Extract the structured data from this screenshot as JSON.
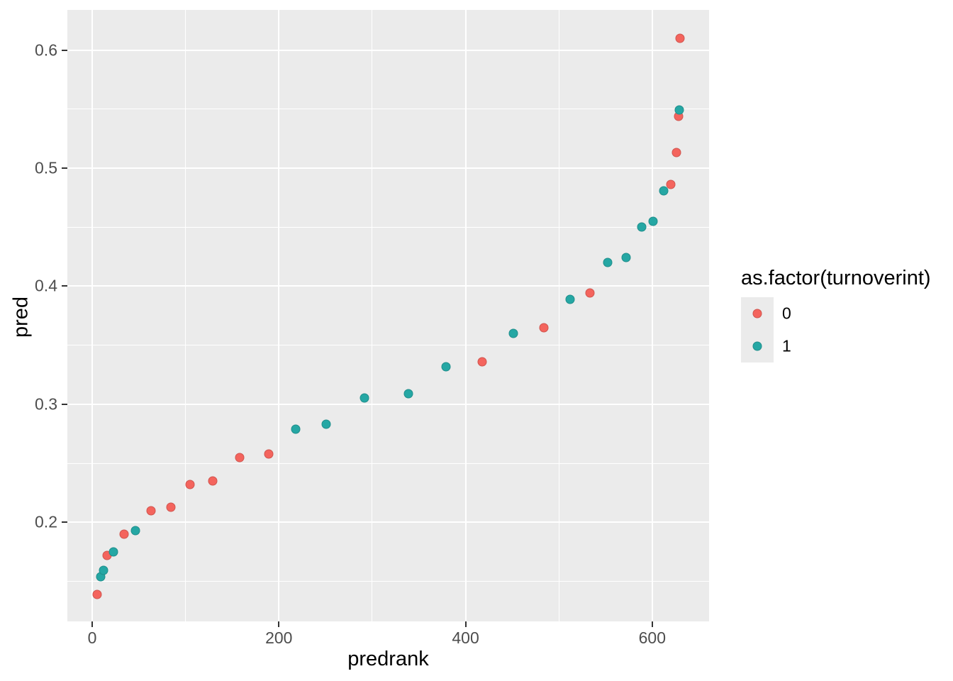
{
  "chart_data": {
    "type": "scatter",
    "title": "",
    "xlabel": "predrank",
    "ylabel": "pred",
    "xlim": [
      -26.6,
      660.9
    ],
    "ylim": [
      0.116,
      0.634
    ],
    "grid": "major and minor white gridlines on grey panel",
    "x_ticks": {
      "major": [
        0,
        200,
        400,
        600
      ],
      "minor": [
        100,
        300,
        500
      ],
      "labels": [
        "0",
        "200",
        "400",
        "600"
      ]
    },
    "y_ticks": {
      "major": [
        0.2,
        0.3,
        0.4,
        0.5,
        0.6
      ],
      "minor": [
        0.15,
        0.25,
        0.35,
        0.45,
        0.55
      ],
      "labels": [
        "0.2",
        "0.3",
        "0.4",
        "0.5",
        "0.6"
      ]
    },
    "legend": {
      "title": "as.factor(turnoverint)",
      "position": "right"
    },
    "series": [
      {
        "name": "0",
        "color": "#F4645D",
        "points": [
          [
            5,
            0.139
          ],
          [
            16,
            0.172
          ],
          [
            34,
            0.19
          ],
          [
            63,
            0.21
          ],
          [
            84,
            0.213
          ],
          [
            105,
            0.232
          ],
          [
            129,
            0.235
          ],
          [
            158,
            0.255
          ],
          [
            189,
            0.258
          ],
          [
            418,
            0.336
          ],
          [
            484,
            0.365
          ],
          [
            533,
            0.394
          ],
          [
            620,
            0.486
          ],
          [
            626,
            0.513
          ],
          [
            628,
            0.544
          ],
          [
            630,
            0.61
          ]
        ]
      },
      {
        "name": "1",
        "color": "#25A7A4",
        "points": [
          [
            9,
            0.154
          ],
          [
            12,
            0.159
          ],
          [
            23,
            0.175
          ],
          [
            46,
            0.193
          ],
          [
            218,
            0.279
          ],
          [
            251,
            0.283
          ],
          [
            292,
            0.305
          ],
          [
            339,
            0.309
          ],
          [
            379,
            0.332
          ],
          [
            451,
            0.36
          ],
          [
            512,
            0.389
          ],
          [
            552,
            0.42
          ],
          [
            572,
            0.424
          ],
          [
            589,
            0.45
          ],
          [
            601,
            0.455
          ],
          [
            612,
            0.481
          ],
          [
            629,
            0.549
          ]
        ]
      }
    ]
  },
  "styles": {
    "background": "#FFFFFF",
    "panel_bg": "#EBEBEB",
    "grid_color": "#FFFFFF",
    "tick_color": "#333333",
    "tick_label_color": "#4D4D4D",
    "title_color": "#000000",
    "legend_key_bg": "#EBEBEB"
  }
}
